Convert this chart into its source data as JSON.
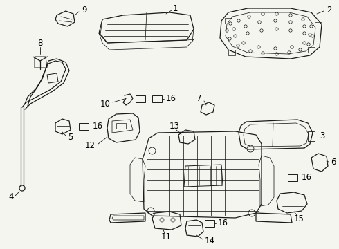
{
  "bg_color": "#f5f5f0",
  "line_color": "#1a1a1a",
  "fig_width": 4.9,
  "fig_height": 3.6,
  "dpi": 100
}
